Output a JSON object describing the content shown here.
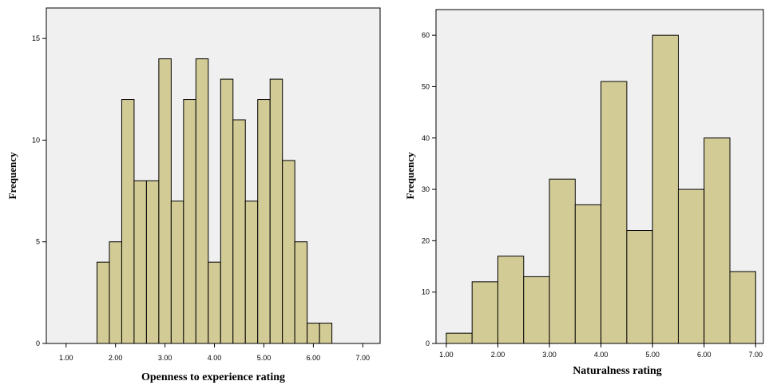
{
  "chart_data": [
    {
      "type": "bar",
      "subtype": "histogram",
      "title": "",
      "xlabel": "Openness to experience rating",
      "ylabel": "Frequency",
      "xlim": [
        0.6,
        7.35
      ],
      "ylim": [
        0,
        16.5
      ],
      "x_ticks": [
        1,
        2,
        3,
        4,
        5,
        6,
        7
      ],
      "x_tick_labels": [
        "1.00",
        "2.00",
        "3.00",
        "4.00",
        "5.00",
        "6.00",
        "7.00"
      ],
      "y_ticks": [
        0,
        5,
        10,
        15
      ],
      "y_tick_labels": [
        "0",
        "5",
        "10",
        "15"
      ],
      "bin_width": 0.25,
      "bin_starts": [
        1.625,
        1.875,
        2.125,
        2.375,
        2.625,
        2.875,
        3.125,
        3.375,
        3.625,
        3.875,
        4.125,
        4.375,
        4.625,
        4.875,
        5.125,
        5.375,
        5.625,
        5.875,
        6.125
      ],
      "values": [
        4,
        5,
        12,
        8,
        8,
        14,
        7,
        12,
        14,
        4,
        13,
        11,
        7,
        12,
        13,
        9,
        5,
        1,
        1
      ],
      "bar_color": "#d3cb96",
      "plot_background": "#f0f0f0",
      "grid": false
    },
    {
      "type": "bar",
      "subtype": "histogram",
      "title": "",
      "xlabel": "Naturalness rating",
      "ylabel": "Frequency",
      "xlim": [
        0.8,
        7.15
      ],
      "ylim": [
        0,
        65
      ],
      "x_ticks": [
        1,
        2,
        3,
        4,
        5,
        6,
        7
      ],
      "x_tick_labels": [
        "1.00",
        "2.00",
        "3.00",
        "4.00",
        "5.00",
        "6.00",
        "7.00"
      ],
      "y_ticks": [
        0,
        10,
        20,
        30,
        40,
        50,
        60
      ],
      "y_tick_labels": [
        "0",
        "10",
        "20",
        "30",
        "40",
        "50",
        "60"
      ],
      "bin_width": 0.5,
      "bin_starts": [
        1.0,
        1.5,
        2.0,
        2.5,
        3.0,
        3.5,
        4.0,
        4.5,
        5.0,
        5.5,
        6.0,
        6.5
      ],
      "values": [
        2,
        12,
        17,
        13,
        32,
        27,
        51,
        22,
        60,
        30,
        40,
        14
      ],
      "bar_color": "#d3cb96",
      "plot_background": "#f0f0f0",
      "grid": false
    }
  ]
}
